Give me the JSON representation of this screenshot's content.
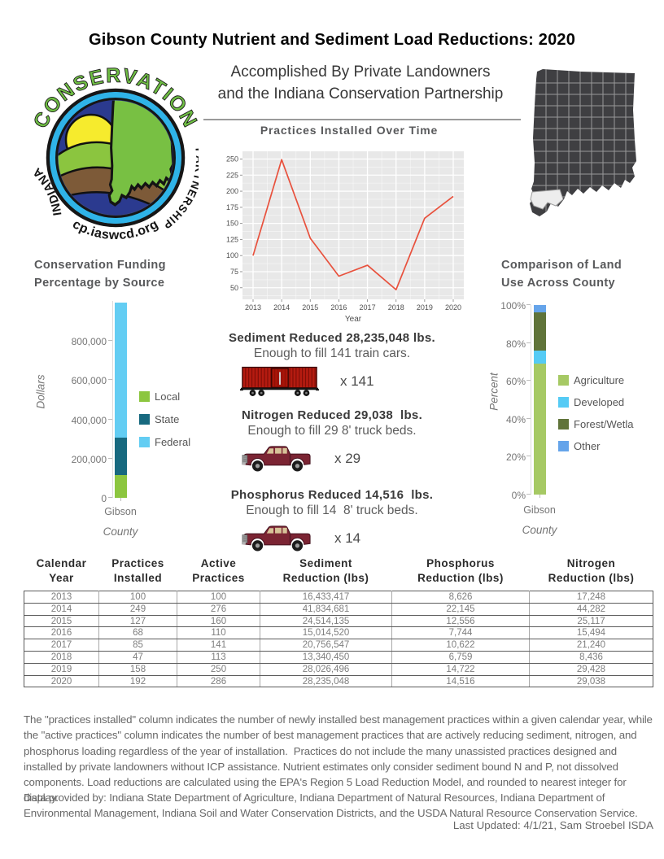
{
  "page": {
    "title": "Gibson County Nutrient and Sediment Load Reductions: 2020",
    "subtitle_line1": "Accomplished By Private Landowners",
    "subtitle_line2": "and the Indiana Conservation Partnership"
  },
  "logo": {
    "text_top": "CONSERVATION",
    "text_left": "INDIANA",
    "text_right": "PARTNERSHIP",
    "text_bottom": "icp.iaswcd.org/",
    "accent_green": "#6fbe44",
    "disc_blue": "#2b3a8f",
    "ring_blue": "#2fb3e8"
  },
  "map": {
    "highlighted_county": "Gibson",
    "state_fill": "#3f3f42",
    "county_line": "#a8a8a8",
    "highlight_fill": "#ededed"
  },
  "chart_data": [
    {
      "id": "practices-line",
      "type": "line",
      "title": "Practices Installed Over Time",
      "xlabel": "Year",
      "x": [
        2013,
        2014,
        2015,
        2016,
        2017,
        2018,
        2019,
        2020
      ],
      "values": [
        100,
        249,
        127,
        68,
        85,
        47,
        158,
        192
      ],
      "yticks": [
        50,
        75,
        100,
        125,
        150,
        175,
        200,
        225,
        250
      ],
      "ylim": [
        32,
        262
      ],
      "line_color": "#e8513d",
      "panel_bg": "#e8e8e8",
      "grid": "white, major + minor"
    },
    {
      "id": "funding-bar",
      "type": "bar",
      "title_lines": [
        "Conservation Funding",
        "Percentage by Source"
      ],
      "ylabel": "Dollars",
      "xlabel": "County",
      "category": "Gibson",
      "ymax": 1003000,
      "yticks": [
        {
          "value": 0,
          "label": "0"
        },
        {
          "value": 200000,
          "label": "200,000"
        },
        {
          "value": 400000,
          "label": "400,000"
        },
        {
          "value": 600000,
          "label": "600,000"
        },
        {
          "value": 800000,
          "label": "800,000"
        }
      ],
      "segments": [
        {
          "label": "Local",
          "value": 118000,
          "color": "#8cc63f"
        },
        {
          "label": "State",
          "value": 190000,
          "color": "#17697f"
        },
        {
          "label": "Federal",
          "value": 685000,
          "color": "#63cdf3"
        }
      ]
    },
    {
      "id": "landuse-bar",
      "type": "bar",
      "title_lines": [
        "Comparison of Land",
        "Use Across County"
      ],
      "ylabel": "Percent",
      "xlabel": "County",
      "category": "Gibson",
      "ymax": 100,
      "yticks": [
        {
          "value": 0,
          "label": "0%"
        },
        {
          "value": 20,
          "label": "20%"
        },
        {
          "value": 40,
          "label": "40%"
        },
        {
          "value": 60,
          "label": "60%"
        },
        {
          "value": 80,
          "label": "80%"
        },
        {
          "value": 100,
          "label": "100%"
        }
      ],
      "segments": [
        {
          "label": "Agriculture",
          "value": 69,
          "color": "#a6c964"
        },
        {
          "label": "Developed",
          "value": 7,
          "color": "#55cbf5"
        },
        {
          "label": "Forest/Wetla",
          "value": 20,
          "color": "#60743a"
        },
        {
          "label": "Other",
          "value": 4,
          "color": "#65a4ea"
        }
      ]
    }
  ],
  "reductions": [
    {
      "heading": "Sediment Reduced 28,235,048 lbs.",
      "subtext": "Enough to fill 141 train cars.",
      "icon": "train-car-icon",
      "multiplier": "x 141"
    },
    {
      "heading": "Nitrogen Reduced 29,038  lbs.",
      "subtext": "Enough to fill 29 8' truck beds.",
      "icon": "pickup-truck-icon",
      "multiplier": "x 29"
    },
    {
      "heading": "Phosphorus Reduced 14,516  lbs.",
      "subtext": "Enough to fill 14  8' truck beds.",
      "icon": "pickup-truck-icon",
      "multiplier": "x 14"
    }
  ],
  "table": {
    "headers": [
      {
        "line1": "Calendar",
        "line2": "Year"
      },
      {
        "line1": "Practices",
        "line2": "Installed"
      },
      {
        "line1": "Active",
        "line2": "Practices"
      },
      {
        "line1": "Sediment",
        "line2": "Reduction (lbs)"
      },
      {
        "line1": "Phosphorus",
        "line2": "Reduction (lbs)"
      },
      {
        "line1": "Nitrogen",
        "line2": "Reduction (lbs)"
      }
    ],
    "rows": [
      [
        "2013",
        "100",
        "100",
        "16,433,417",
        "8,626",
        "17,248"
      ],
      [
        "2014",
        "249",
        "276",
        "41,834,681",
        "22,145",
        "44,282"
      ],
      [
        "2015",
        "127",
        "160",
        "24,514,135",
        "12,556",
        "25,117"
      ],
      [
        "2016",
        "68",
        "110",
        "15,014,520",
        "7,744",
        "15,494"
      ],
      [
        "2017",
        "85",
        "141",
        "20,756,547",
        "10,622",
        "21,240"
      ],
      [
        "2018",
        "47",
        "113",
        "13,340,450",
        "6,759",
        "8,436"
      ],
      [
        "2019",
        "158",
        "250",
        "28,026,496",
        "14,722",
        "29,428"
      ],
      [
        "2020",
        "192",
        "286",
        "28,235,048",
        "14,516",
        "29,038"
      ]
    ]
  },
  "notes": {
    "paragraph1": "The \"practices installed\" column indicates the number of newly installed best management practices within a given calendar year, while the \"active practices\" column indicates the number of best management practices that are actively reducing sediment, nitrogen, and phosphorus loading regardless of the year of installation.  Practices do not include the many unassisted practices designed and installed by private landowners without ICP assistance. Nutrient estimates only consider sediment bound N and P, not dissolved components. Load reductions are calculated using the EPA's Region 5 Load Reduction Model, and rounded to nearest integer for display.",
    "paragraph2": "Data provided by: Indiana State Department of Agriculture, Indiana Department of Natural Resources, Indiana Department of Environmental Management, Indiana Soil and Water Conservation Districts, and the USDA Natural Resource Conservation Service.",
    "last_updated": "Last Updated: 4/1/21, Sam Stroebel ISDA"
  }
}
